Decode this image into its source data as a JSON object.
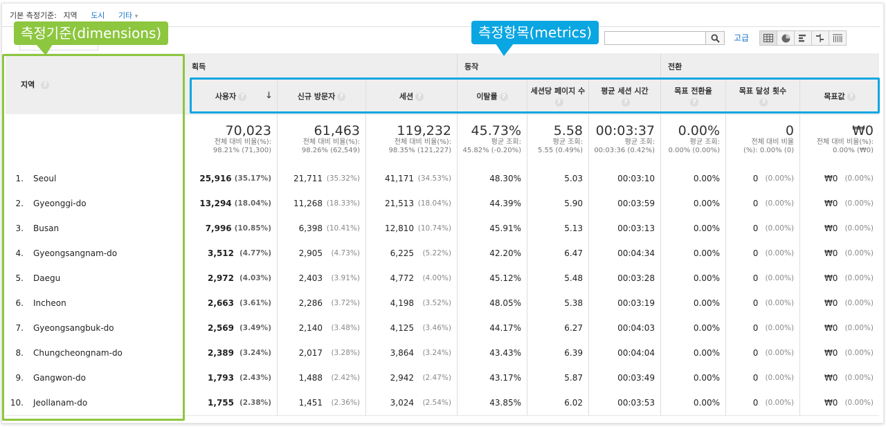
{
  "topnav": {
    "primary_label": "기본 측정기준:",
    "primary_value": "지역",
    "link_city": "도시",
    "link_other": "기타"
  },
  "search": {
    "placeholder": "",
    "advanced_label": "고급"
  },
  "view_buttons": [
    "table-view-icon",
    "pie-view-icon",
    "bar-view-icon",
    "comparison-view-icon",
    "pivot-view-icon"
  ],
  "callouts": {
    "dimensions": "측정기준(dimensions)",
    "metrics": "측정항목(metrics)"
  },
  "colors": {
    "dimensions_highlight": "#8dc63f",
    "metrics_highlight": "#0aa6e2",
    "link": "#1a73c7"
  },
  "groups": {
    "acquisition": "획득",
    "behavior": "동작",
    "conversion": "전환"
  },
  "dimension_header": "지역",
  "metric_headers": [
    "사용자",
    "신규 방문자",
    "세션",
    "이탈률",
    "세션당 페이지 수",
    "평균 세션 시간",
    "목표 전환율",
    "목표 달성 횟수",
    "목표값"
  ],
  "totals": [
    {
      "value": "70,023",
      "sub1": "전체 대비 비율(%):",
      "sub2": "98.21% (71,300)"
    },
    {
      "value": "61,463",
      "sub1": "전체 대비 비율(%):",
      "sub2": "98.26% (62,549)"
    },
    {
      "value": "119,232",
      "sub1": "전체 대비 비율(%):",
      "sub2": "98.35% (121,227)"
    },
    {
      "value": "45.73%",
      "sub1": "평균 조회:",
      "sub2": "45.82% (-0.20%)"
    },
    {
      "value": "5.58",
      "sub1": "평균 조회:",
      "sub2": "5.55 (0.49%)"
    },
    {
      "value": "00:03:37",
      "sub1": "평균 조회:",
      "sub2": "00:03:36 (0.42%)"
    },
    {
      "value": "0.00%",
      "sub1": "평균 조회:",
      "sub2": "0.00% (0.00%)"
    },
    {
      "value": "0",
      "sub1": "전체 대비 비율",
      "sub2": "(%): 0.00% (0)"
    },
    {
      "value": "₩0",
      "sub1": "전체 대비 비율(%):",
      "sub2": "0.00% (₩0)"
    }
  ],
  "rows": [
    {
      "idx": "1.",
      "region": "Seoul",
      "users": "25,916",
      "users_pct": "(35.17%)",
      "new": "21,711",
      "new_pct": "(35.32%)",
      "sessions": "41,171",
      "sessions_pct": "(34.53%)",
      "bounce": "48.30%",
      "pps": "5.03",
      "dur": "00:03:10",
      "conv": "0.00%",
      "goal": "0",
      "goal_pct": "(0.00%)",
      "val": "₩0",
      "val_pct": "(0.00%)"
    },
    {
      "idx": "2.",
      "region": "Gyeonggi-do",
      "users": "13,294",
      "users_pct": "(18.04%)",
      "new": "11,268",
      "new_pct": "(18.33%)",
      "sessions": "21,513",
      "sessions_pct": "(18.04%)",
      "bounce": "44.39%",
      "pps": "5.90",
      "dur": "00:03:59",
      "conv": "0.00%",
      "goal": "0",
      "goal_pct": "(0.00%)",
      "val": "₩0",
      "val_pct": "(0.00%)"
    },
    {
      "idx": "3.",
      "region": "Busan",
      "users": "7,996",
      "users_pct": "(10.85%)",
      "new": "6,398",
      "new_pct": "(10.41%)",
      "sessions": "12,810",
      "sessions_pct": "(10.74%)",
      "bounce": "45.91%",
      "pps": "5.13",
      "dur": "00:03:13",
      "conv": "0.00%",
      "goal": "0",
      "goal_pct": "(0.00%)",
      "val": "₩0",
      "val_pct": "(0.00%)"
    },
    {
      "idx": "4.",
      "region": "Gyeongsangnam-do",
      "users": "3,512",
      "users_pct": "(4.77%)",
      "new": "2,905",
      "new_pct": "(4.73%)",
      "sessions": "6,225",
      "sessions_pct": "(5.22%)",
      "bounce": "42.20%",
      "pps": "6.47",
      "dur": "00:04:34",
      "conv": "0.00%",
      "goal": "0",
      "goal_pct": "(0.00%)",
      "val": "₩0",
      "val_pct": "(0.00%)"
    },
    {
      "idx": "5.",
      "region": "Daegu",
      "users": "2,972",
      "users_pct": "(4.03%)",
      "new": "2,403",
      "new_pct": "(3.91%)",
      "sessions": "4,772",
      "sessions_pct": "(4.00%)",
      "bounce": "45.12%",
      "pps": "5.48",
      "dur": "00:03:28",
      "conv": "0.00%",
      "goal": "0",
      "goal_pct": "(0.00%)",
      "val": "₩0",
      "val_pct": "(0.00%)"
    },
    {
      "idx": "6.",
      "region": "Incheon",
      "users": "2,663",
      "users_pct": "(3.61%)",
      "new": "2,286",
      "new_pct": "(3.72%)",
      "sessions": "4,198",
      "sessions_pct": "(3.52%)",
      "bounce": "48.05%",
      "pps": "5.38",
      "dur": "00:03:19",
      "conv": "0.00%",
      "goal": "0",
      "goal_pct": "(0.00%)",
      "val": "₩0",
      "val_pct": "(0.00%)"
    },
    {
      "idx": "7.",
      "region": "Gyeongsangbuk-do",
      "users": "2,569",
      "users_pct": "(3.49%)",
      "new": "2,140",
      "new_pct": "(3.48%)",
      "sessions": "4,125",
      "sessions_pct": "(3.46%)",
      "bounce": "44.17%",
      "pps": "6.27",
      "dur": "00:04:03",
      "conv": "0.00%",
      "goal": "0",
      "goal_pct": "(0.00%)",
      "val": "₩0",
      "val_pct": "(0.00%)"
    },
    {
      "idx": "8.",
      "region": "Chungcheongnam-do",
      "users": "2,389",
      "users_pct": "(3.24%)",
      "new": "2,017",
      "new_pct": "(3.28%)",
      "sessions": "3,864",
      "sessions_pct": "(3.24%)",
      "bounce": "43.43%",
      "pps": "6.39",
      "dur": "00:04:04",
      "conv": "0.00%",
      "goal": "0",
      "goal_pct": "(0.00%)",
      "val": "₩0",
      "val_pct": "(0.00%)"
    },
    {
      "idx": "9.",
      "region": "Gangwon-do",
      "users": "1,793",
      "users_pct": "(2.43%)",
      "new": "1,488",
      "new_pct": "(2.42%)",
      "sessions": "2,942",
      "sessions_pct": "(2.47%)",
      "bounce": "43.17%",
      "pps": "5.87",
      "dur": "00:03:49",
      "conv": "0.00%",
      "goal": "0",
      "goal_pct": "(0.00%)",
      "val": "₩0",
      "val_pct": "(0.00%)"
    },
    {
      "idx": "10.",
      "region": "Jeollanam-do",
      "users": "1,755",
      "users_pct": "(2.38%)",
      "new": "1,451",
      "new_pct": "(2.36%)",
      "sessions": "3,024",
      "sessions_pct": "(2.54%)",
      "bounce": "43.85%",
      "pps": "6.02",
      "dur": "00:03:53",
      "conv": "0.00%",
      "goal": "0",
      "goal_pct": "(0.00%)",
      "val": "₩0",
      "val_pct": "(0.00%)"
    }
  ]
}
